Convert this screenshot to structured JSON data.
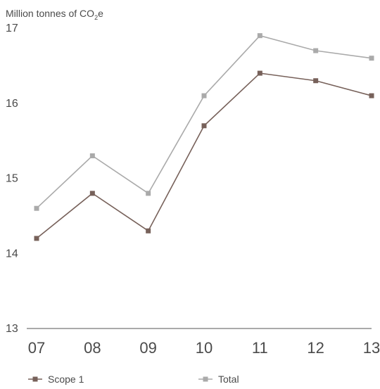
{
  "chart_data": {
    "type": "line",
    "ylabel": "Million tonnes of CO",
    "ylabel_sub": "2",
    "ylabel_suffix": "e",
    "categories": [
      "07",
      "08",
      "09",
      "10",
      "11",
      "12",
      "13"
    ],
    "ylim": [
      13,
      17
    ],
    "yticks": [
      "13",
      "14",
      "15",
      "16",
      "17"
    ],
    "grid": false,
    "legend_position": "bottom",
    "series": [
      {
        "name": "Scope 1",
        "color": "#77615a",
        "values": [
          14.2,
          14.8,
          14.3,
          15.7,
          16.4,
          16.3,
          16.1
        ]
      },
      {
        "name": "Total",
        "color": "#aaaaaa",
        "values": [
          14.6,
          15.3,
          14.8,
          16.1,
          16.9,
          16.7,
          16.6
        ]
      }
    ]
  }
}
